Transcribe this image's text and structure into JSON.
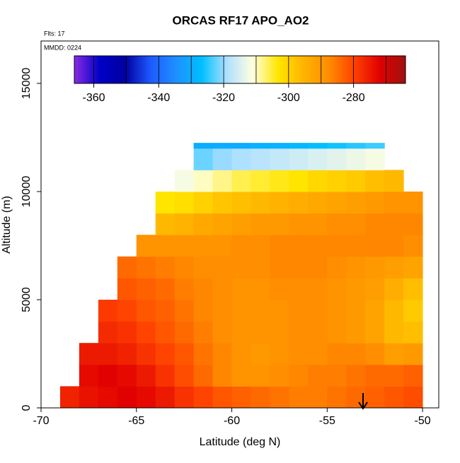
{
  "chart_data": {
    "type": "heatmap",
    "title": "ORCAS RF17 APO_AO2",
    "annotations": [
      "Flts: 17",
      "MMDD: 0224"
    ],
    "x_label": "Latitude (deg N)",
    "y_label": "Altitude (m)",
    "xlim": [
      -70,
      -49.15
    ],
    "xticks": [
      -70,
      -65,
      -60,
      -55,
      -50
    ],
    "ylim": [
      0,
      16960
    ],
    "yticks": [
      0,
      5000,
      10000,
      15000
    ],
    "xbins": [
      -69,
      -68,
      -67,
      -66,
      -65,
      -64,
      -63,
      -62,
      -61,
      -60,
      -59,
      -58,
      -57,
      -56,
      -55,
      -54,
      -53,
      -52,
      -51,
      -50
    ],
    "ybins": [
      0,
      1000,
      2000,
      3000,
      4000,
      5000,
      6000,
      7000,
      8000,
      9000,
      10000,
      11000,
      12000,
      12250
    ],
    "values": [
      [
        -276,
        -274,
        -273,
        -272,
        -273,
        -275,
        -278,
        -280,
        -282,
        -283,
        -284,
        -285,
        -286,
        -286,
        -285,
        -284,
        -283,
        -282,
        -281
      ],
      [
        null,
        -273,
        -272,
        -273,
        -275,
        -278,
        -281,
        -284,
        -287,
        -289,
        -289,
        -288,
        -287,
        -286,
        -286,
        -285,
        -284,
        -284,
        -283
      ],
      [
        null,
        -275,
        -275,
        -276,
        -278,
        -280,
        -282,
        -285,
        -287,
        -289,
        -290,
        -289,
        -288,
        -288,
        -287,
        -287,
        -288,
        -291,
        -290
      ],
      [
        null,
        null,
        -277,
        -278,
        -280,
        -282,
        -284,
        -286,
        -288,
        -289,
        -289,
        -289,
        -288,
        -288,
        -289,
        -290,
        -292,
        -296,
        -297
      ],
      [
        null,
        null,
        -279,
        -280,
        -282,
        -283,
        -285,
        -287,
        -288,
        -289,
        -289,
        -289,
        -288,
        -288,
        -289,
        -290,
        -292,
        -296,
        -299
      ],
      [
        null,
        null,
        null,
        -282,
        -283,
        -284,
        -286,
        -287,
        -288,
        -289,
        -289,
        -288,
        -288,
        -288,
        -289,
        -290,
        -291,
        -294,
        -297
      ],
      [
        null,
        null,
        null,
        -284,
        -285,
        -286,
        -287,
        -288,
        -288,
        -288,
        -288,
        -287,
        -287,
        -287,
        -288,
        -289,
        -290,
        -291,
        -292
      ],
      [
        null,
        null,
        null,
        null,
        -289,
        -289,
        -289,
        -289,
        -289,
        -288,
        -288,
        -287,
        -287,
        -287,
        -287,
        -287,
        -287,
        -287,
        -288
      ],
      [
        null,
        null,
        null,
        null,
        null,
        -296,
        -295,
        -293,
        -292,
        -291,
        -290,
        -290,
        -289,
        -289,
        -288,
        -288,
        -287,
        -287,
        -287
      ],
      [
        null,
        null,
        null,
        null,
        null,
        -303,
        -302,
        -300,
        -298,
        -297,
        -296,
        -295,
        -294,
        -293,
        -292,
        -291,
        -290,
        -289,
        -289
      ],
      [
        null,
        null,
        null,
        null,
        null,
        null,
        -312,
        -310,
        -308,
        -306,
        -305,
        -304,
        -303,
        -301,
        -300,
        -299,
        -297,
        -296,
        null
      ],
      [
        null,
        null,
        null,
        null,
        null,
        null,
        null,
        -322,
        -320,
        -319,
        -318,
        -317,
        -316,
        -315,
        -314,
        -313,
        -312,
        null,
        null
      ],
      [
        null,
        null,
        null,
        null,
        null,
        null,
        null,
        -330,
        -330,
        -330,
        -329,
        -329,
        -328,
        -327,
        -326,
        -325,
        -324,
        null,
        null
      ]
    ],
    "colorbar": {
      "lim": [
        -366,
        -264
      ],
      "ticks": [
        -360,
        -340,
        -320,
        -300,
        -280
      ],
      "colors": [
        "#8a2be2",
        "#0000c8",
        "#0000a0",
        "#1e5aff",
        "#1e90ff",
        "#00bfff",
        "#b0e0ff",
        "#ffffe0",
        "#ffe600",
        "#ffb400",
        "#ff8c00",
        "#ff4000",
        "#e00000",
        "#a01010"
      ]
    }
  }
}
